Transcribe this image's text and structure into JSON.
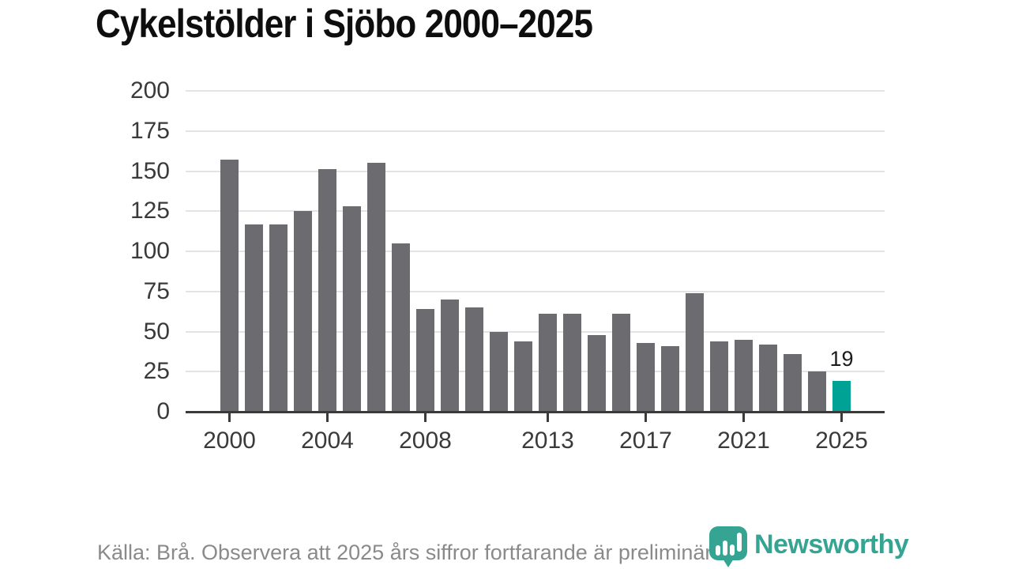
{
  "page": {
    "title": "Cykelstölder i Sjöbo 2000–2025",
    "footer": "Källa: Brå. Observera att 2025 års siffror fortfarande är preliminära.",
    "brand": "Newsworthy",
    "logo_icon": "map-pin-with-bar-chart"
  },
  "colors": {
    "bar": "#6b6b70",
    "bar_highlight": "#00a296",
    "grid": "#e3e3e3",
    "axis": "#3a3a3a",
    "tick_label": "#3a3a3a",
    "footer_text": "#8a8a8a",
    "brand_teal": "#35a492",
    "title": "#0e0e0e"
  },
  "chart_data": {
    "type": "bar",
    "title": "Cykelstölder i Sjöbo 2000–2025",
    "categories": [
      "2000",
      "2001",
      "2002",
      "2003",
      "2004",
      "2005",
      "2006",
      "2007",
      "2008",
      "2009",
      "2010",
      "2011",
      "2012",
      "2013",
      "2014",
      "2015",
      "2016",
      "2017",
      "2018",
      "2019",
      "2020",
      "2021",
      "2022",
      "2023",
      "2024",
      "2025"
    ],
    "values": [
      157,
      117,
      117,
      125,
      151,
      128,
      155,
      105,
      64,
      70,
      65,
      50,
      44,
      61,
      61,
      48,
      61,
      43,
      41,
      74,
      44,
      45,
      42,
      36,
      25,
      19
    ],
    "highlight_index": 25,
    "highlight_label": "19",
    "xticks": [
      "2000",
      "2004",
      "2008",
      "2013",
      "2017",
      "2021",
      "2025"
    ],
    "yticks": [
      0,
      25,
      50,
      75,
      100,
      125,
      150,
      175,
      200
    ],
    "ylim": [
      0,
      200
    ],
    "xlabel": "",
    "ylabel": "",
    "grid": true,
    "legend": false
  }
}
